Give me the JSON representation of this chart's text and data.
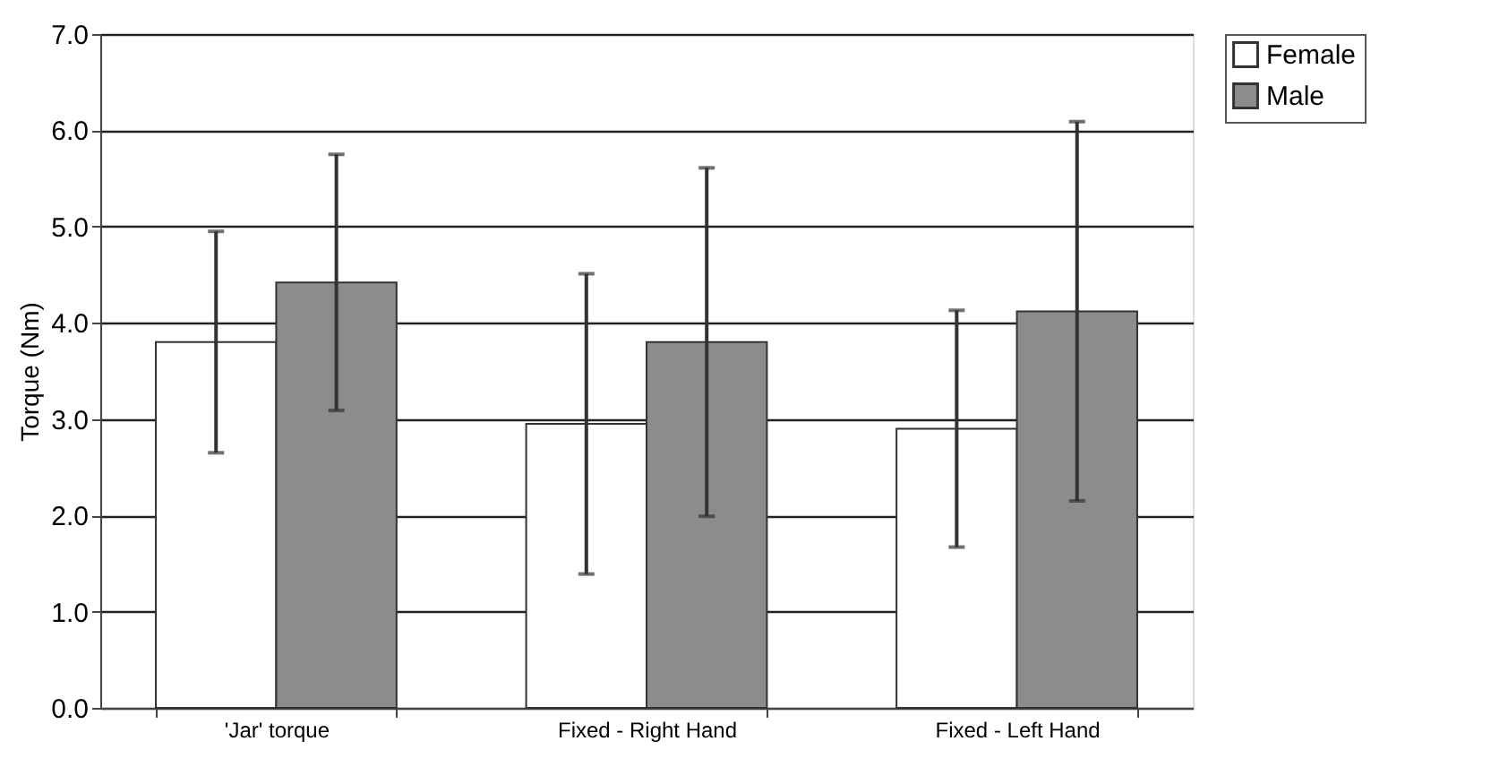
{
  "chart_data": {
    "type": "bar",
    "ylabel": "Torque (Nm)",
    "categories": [
      "'Jar' torque",
      "Fixed - Right Hand",
      "Fixed - Left Hand"
    ],
    "series": [
      {
        "name": "Female",
        "color": "#ffffff",
        "values": [
          3.8,
          2.95,
          2.9
        ],
        "errors": [
          1.15,
          1.56,
          1.23
        ]
      },
      {
        "name": "Male",
        "color": "#8c8c8c",
        "values": [
          4.42,
          3.8,
          4.12
        ],
        "errors": [
          1.33,
          1.81,
          1.97
        ]
      }
    ],
    "ylim": [
      0,
      7
    ],
    "yticks": [
      {
        "value": 0,
        "label": "0.0"
      },
      {
        "value": 1,
        "label": "1.0"
      },
      {
        "value": 2,
        "label": "2.0"
      },
      {
        "value": 3,
        "label": "3.0"
      },
      {
        "value": 4,
        "label": "4.0"
      },
      {
        "value": 5,
        "label": "5.0"
      },
      {
        "value": 6,
        "label": "6.0"
      },
      {
        "value": 7,
        "label": "7.0"
      }
    ],
    "grid": "y",
    "legend": "right"
  }
}
